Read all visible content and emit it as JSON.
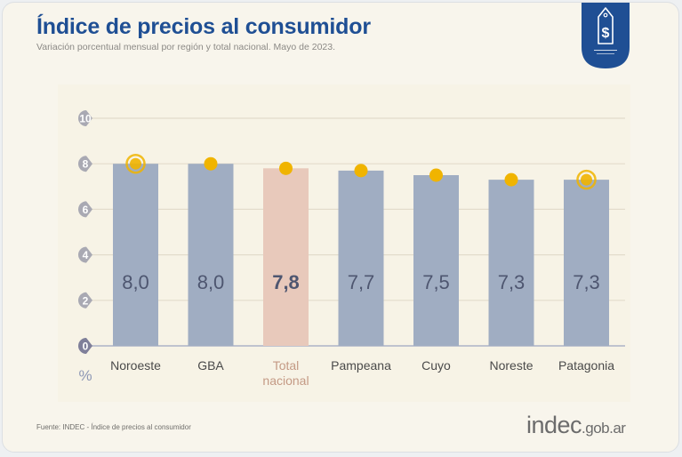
{
  "header": {
    "title": "Índice de precios al consumidor",
    "subtitle": "Variación porcentual mensual por región y total nacional. Mayo de 2023."
  },
  "badge": {
    "icon": "price-tag-dollar-icon",
    "color": "#1f4f94"
  },
  "footer": {
    "source": "Fuente: INDEC - Índice de precios al consumidor",
    "logo_main": "indec",
    "logo_suffix": ".gob.ar"
  },
  "colors": {
    "bar": "#a0adc2",
    "bar_highlight": "#e8c9bb",
    "dot": "#f0b400",
    "value_text": "#4e5670",
    "label_text": "#4a4a4a",
    "label_highlight": "#c49a85",
    "tick_bubble": "#a9a9b3",
    "tick_bubble_zero": "#7f7f99",
    "grid": "#e3dccb"
  },
  "chart_data": {
    "type": "bar",
    "title": "Índice de precios al consumidor",
    "subtitle": "Variación porcentual mensual por región y total nacional. Mayo de 2023.",
    "xlabel": "",
    "ylabel": "%",
    "ylim": [
      0,
      10
    ],
    "yticks": [
      0,
      2,
      4,
      6,
      8,
      10
    ],
    "grid": true,
    "categories": [
      "Noroeste",
      "GBA",
      "Total nacional",
      "Pampeana",
      "Cuyo",
      "Noreste",
      "Patagonia"
    ],
    "category_lines": [
      [
        "Noroeste"
      ],
      [
        "GBA"
      ],
      [
        "Total",
        "nacional"
      ],
      [
        "Pampeana"
      ],
      [
        "Cuyo"
      ],
      [
        "Noreste"
      ],
      [
        "Patagonia"
      ]
    ],
    "values": [
      8.0,
      8.0,
      7.8,
      7.7,
      7.5,
      7.3,
      7.3
    ],
    "value_labels": [
      "8,0",
      "8,0",
      "7,8",
      "7,7",
      "7,5",
      "7,3",
      "7,3"
    ],
    "highlight_index": 2,
    "ringed_markers": [
      0,
      6
    ]
  }
}
